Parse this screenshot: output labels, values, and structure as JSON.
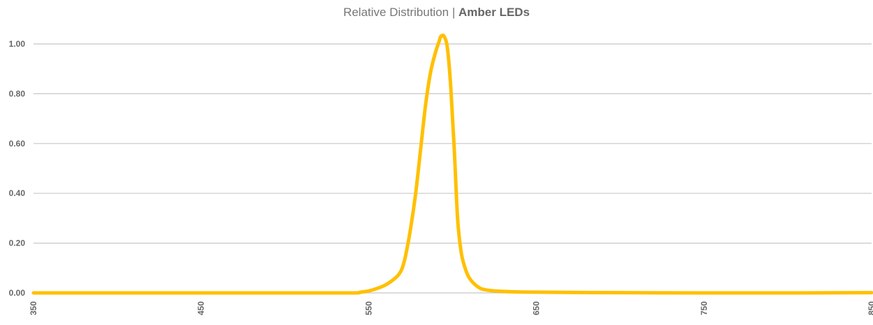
{
  "chart_data": {
    "type": "line",
    "title": "Relative Distribution",
    "title_separator": "|",
    "subtitle": "Amber LEDs",
    "xlabel": "",
    "ylabel": "",
    "xlim": [
      350,
      850
    ],
    "ylim": [
      0,
      1.05
    ],
    "x_ticks": [
      "350",
      "450",
      "550",
      "650",
      "750",
      "850"
    ],
    "y_ticks": [
      "0.00",
      "0.20",
      "0.40",
      "0.60",
      "0.80",
      "1.00"
    ],
    "grid": true,
    "legend": "none",
    "series": [
      {
        "color": "#FFC000",
        "points": [
          [
            350,
            0
          ],
          [
            400,
            0
          ],
          [
            450,
            0
          ],
          [
            500,
            0
          ],
          [
            540,
            0
          ],
          [
            545,
            0.003
          ],
          [
            550,
            0.008
          ],
          [
            555,
            0.018
          ],
          [
            560,
            0.032
          ],
          [
            565,
            0.055
          ],
          [
            568,
            0.075
          ],
          [
            570,
            0.1
          ],
          [
            572,
            0.15
          ],
          [
            575,
            0.26
          ],
          [
            578,
            0.4
          ],
          [
            581,
            0.58
          ],
          [
            584,
            0.76
          ],
          [
            587,
            0.89
          ],
          [
            590,
            0.97
          ],
          [
            592,
            1.01
          ],
          [
            593,
            1.03
          ],
          [
            595,
            1.03
          ],
          [
            597,
            0.98
          ],
          [
            599,
            0.82
          ],
          [
            601,
            0.58
          ],
          [
            603,
            0.3
          ],
          [
            605,
            0.17
          ],
          [
            607,
            0.11
          ],
          [
            610,
            0.06
          ],
          [
            615,
            0.025
          ],
          [
            620,
            0.012
          ],
          [
            630,
            0.006
          ],
          [
            650,
            0.003
          ],
          [
            700,
            0.001
          ],
          [
            750,
            0
          ],
          [
            800,
            0
          ],
          [
            850,
            0.001
          ]
        ]
      }
    ]
  }
}
